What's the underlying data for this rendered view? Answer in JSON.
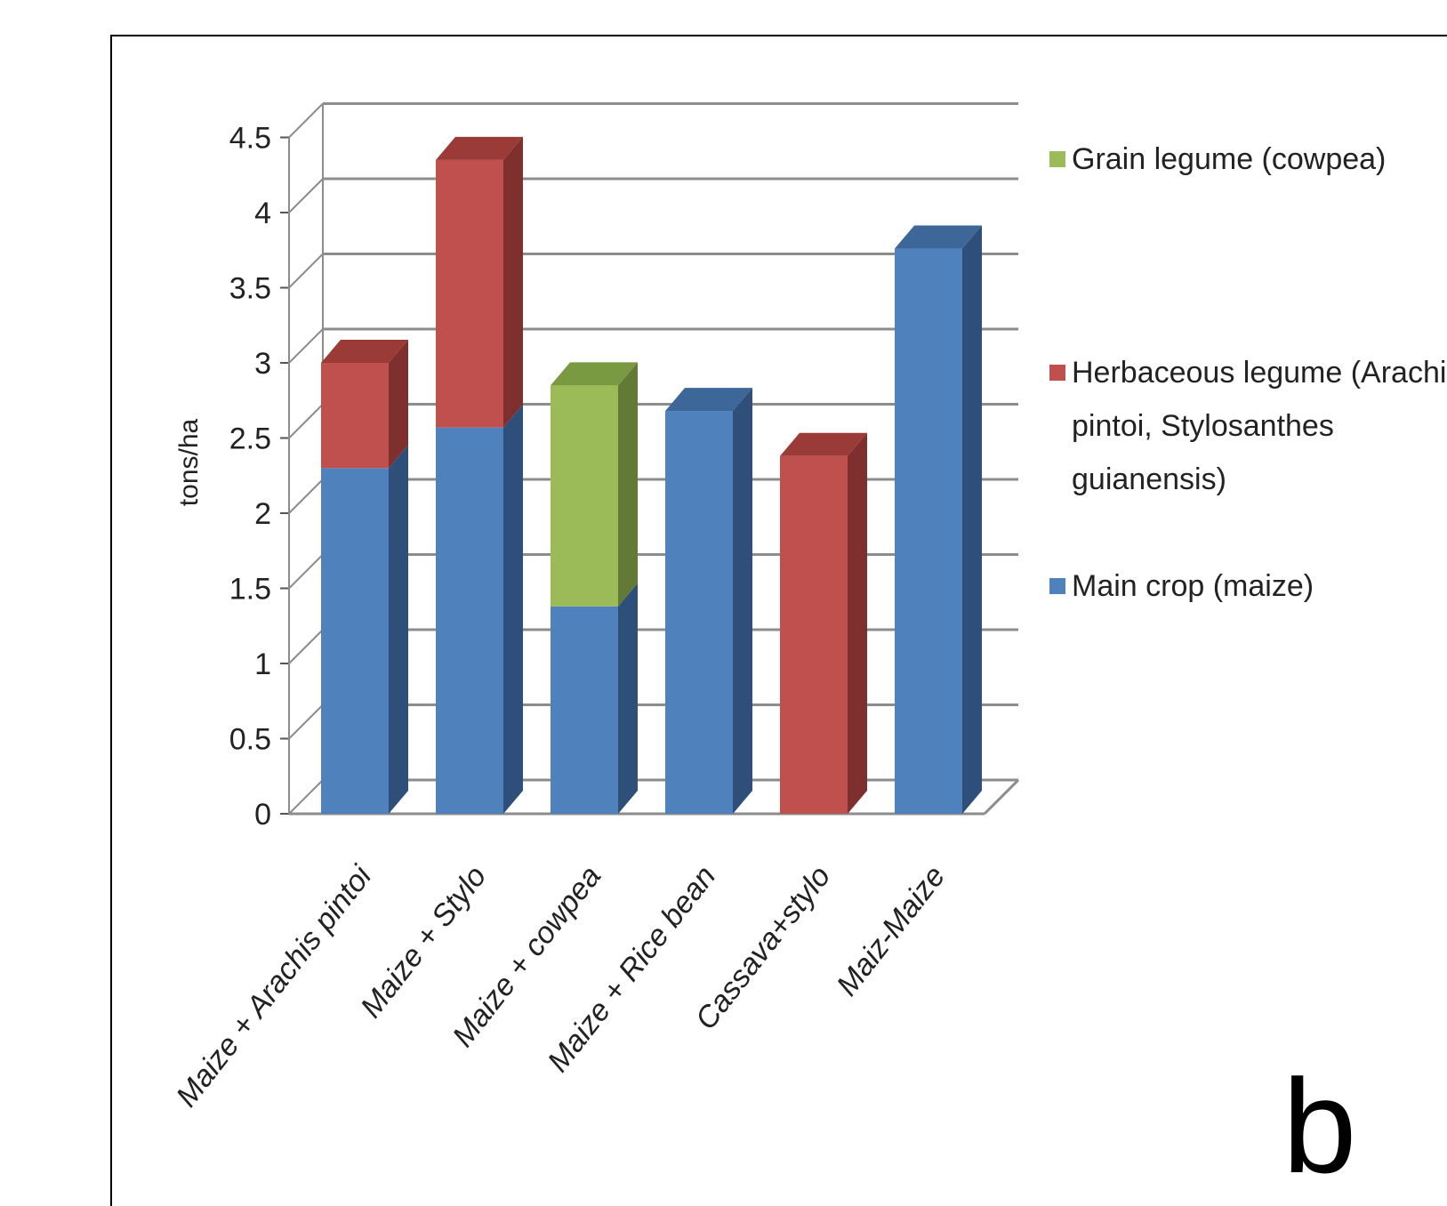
{
  "chart_data": {
    "type": "bar",
    "stacked": true,
    "three_d": true,
    "categories": [
      "Maize + Arachis pintoi",
      "Maize + Stylo",
      "Maize + cowpea",
      "Maize + Rice bean",
      "Cassava+stylo",
      "Maiz-Maize"
    ],
    "series": [
      {
        "name": "Main crop (maize)",
        "color": "#4F81BD",
        "side_color": "#2E4F7A",
        "top_color": "#3D6699",
        "values": [
          2.3,
          2.57,
          1.38,
          2.68,
          0,
          3.76
        ]
      },
      {
        "name": "Herbaceous legume (Arachis pintoi, Stylosanthes guianensis)",
        "color": "#C0504D",
        "side_color": "#7F2F2D",
        "top_color": "#9A3B38",
        "values": [
          0.7,
          1.78,
          0,
          0,
          2.38,
          0
        ]
      },
      {
        "name": "Grain legume (cowpea)",
        "color": "#9BBB59",
        "side_color": "#637A36",
        "top_color": "#7A9A42",
        "values": [
          0,
          0,
          1.47,
          0,
          0,
          0
        ]
      }
    ],
    "legend_order": [
      "Grain legume (cowpea)",
      "Herbaceous legume (Arachis pintoi, Stylosanthes guianensis)",
      "Main crop (maize)"
    ],
    "legend_lines": [
      [
        "Grain legume (cowpea)"
      ],
      [
        "Herbaceous legume (Arachis",
        "pintoi, Stylosanthes",
        "guianensis)"
      ],
      [
        "Main crop (maize)"
      ]
    ],
    "ylabel": "tons/ha",
    "xlabel": "",
    "ylim": [
      0,
      4.5
    ],
    "yticks": [
      "0",
      "0.5",
      "1",
      "1.5",
      "2",
      "2.5",
      "3",
      "3.5",
      "4",
      "4.5"
    ],
    "grid": true,
    "legend_position": "right"
  },
  "panel_label": "b"
}
